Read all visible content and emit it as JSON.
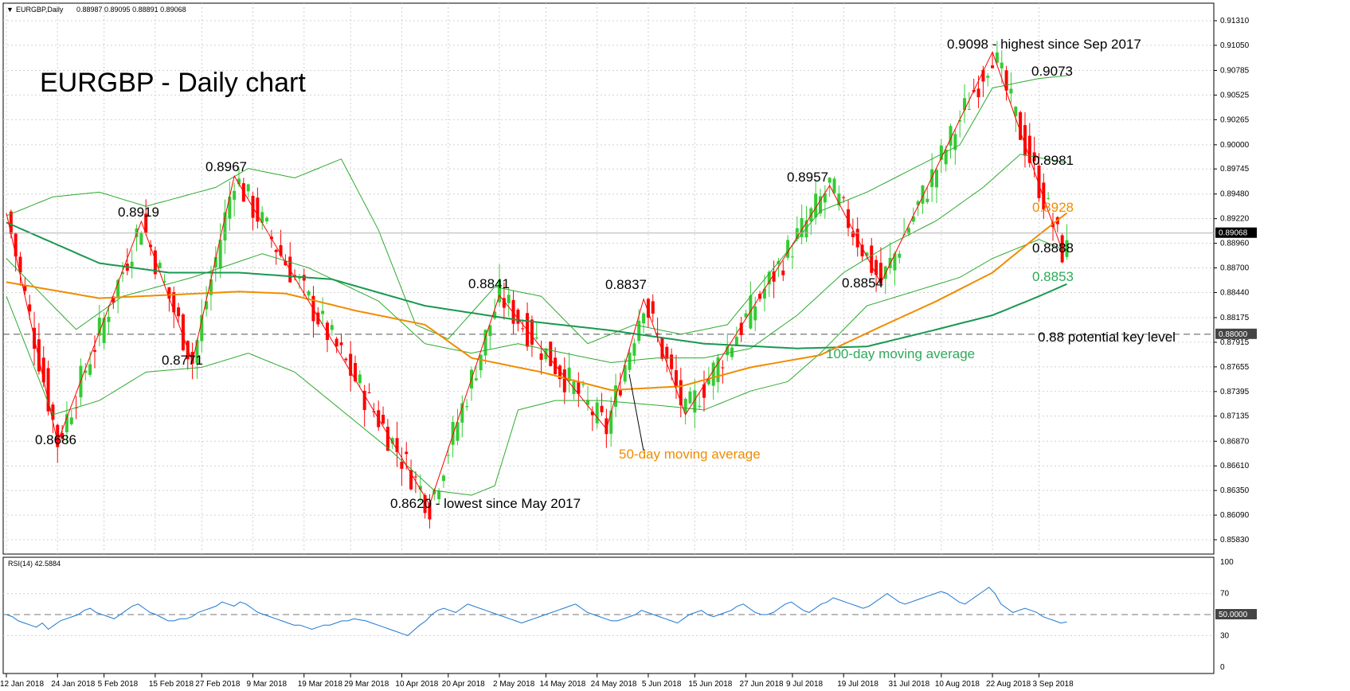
{
  "header": {
    "symbol_label": "EURGBP,Daily",
    "ohlc": "0.88987 0.89095 0.88891 0.89068"
  },
  "rsi_header": "RSI(14) 42.5884",
  "chart_data": [
    {
      "type": "candlestick",
      "title": "EURGBP - Daily chart",
      "ylim": [
        0.8583,
        0.9131
      ],
      "y_ticks": [
        "0.91310",
        "0.91050",
        "0.90785",
        "0.90525",
        "0.90265",
        "0.90000",
        "0.89745",
        "0.89480",
        "0.89220",
        "0.88960",
        "0.88700",
        "0.88440",
        "0.88175",
        "0.87915",
        "0.87655",
        "0.87395",
        "0.87135",
        "0.86870",
        "0.86610",
        "0.86350",
        "0.86090",
        "0.85830"
      ],
      "x_ticks": [
        "12 Jan 2018",
        "24 Jan 2018",
        "5 Feb 2018",
        "15 Feb 2018",
        "27 Feb 2018",
        "9 Mar 2018",
        "19 Mar 2018",
        "29 Mar 2018",
        "10 Apr 2018",
        "20 Apr 2018",
        "2 May 2018",
        "14 May 2018",
        "24 May 2018",
        "5 Jun 2018",
        "15 Jun 2018",
        "27 Jun 2018",
        "9 Jul 2018",
        "19 Jul 2018",
        "31 Jul 2018",
        "10 Aug 2018",
        "22 Aug 2018",
        "3 Sep 2018"
      ],
      "last_price": "0.89068",
      "key_level_price": "0.88000",
      "key_level": 0.88,
      "zigzag": [
        {
          "i": 0,
          "v": 0.8928
        },
        {
          "i": 11,
          "v": 0.8686
        },
        {
          "i": 29,
          "v": 0.8919
        },
        {
          "i": 40,
          "v": 0.8771
        },
        {
          "i": 49,
          "v": 0.8967
        },
        {
          "i": 91,
          "v": 0.862
        },
        {
          "i": 106,
          "v": 0.8841
        },
        {
          "i": 129,
          "v": 0.87
        },
        {
          "i": 137,
          "v": 0.8837
        },
        {
          "i": 146,
          "v": 0.8715
        },
        {
          "i": 177,
          "v": 0.8957
        },
        {
          "i": 188,
          "v": 0.8854
        },
        {
          "i": 212,
          "v": 0.9098
        },
        {
          "i": 227,
          "v": 0.8888
        }
      ],
      "ma50": [
        [
          0,
          0.8855
        ],
        [
          20,
          0.8838
        ],
        [
          50,
          0.8845
        ],
        [
          60,
          0.8843
        ],
        [
          75,
          0.8825
        ],
        [
          90,
          0.881
        ],
        [
          100,
          0.8775
        ],
        [
          115,
          0.876
        ],
        [
          130,
          0.8741
        ],
        [
          145,
          0.8745
        ],
        [
          160,
          0.8765
        ],
        [
          175,
          0.8778
        ],
        [
          188,
          0.8808
        ],
        [
          200,
          0.8835
        ],
        [
          212,
          0.8865
        ],
        [
          222,
          0.8905
        ],
        [
          228,
          0.8928
        ]
      ],
      "ma100": [
        [
          0,
          0.8918
        ],
        [
          20,
          0.8875
        ],
        [
          35,
          0.8865
        ],
        [
          50,
          0.8865
        ],
        [
          70,
          0.8858
        ],
        [
          90,
          0.883
        ],
        [
          110,
          0.8815
        ],
        [
          130,
          0.8804
        ],
        [
          150,
          0.879
        ],
        [
          170,
          0.8785
        ],
        [
          185,
          0.8787
        ],
        [
          200,
          0.8805
        ],
        [
          212,
          0.882
        ],
        [
          222,
          0.884
        ],
        [
          228,
          0.8853
        ]
      ],
      "boll_upper": [
        [
          0,
          0.8925
        ],
        [
          10,
          0.8945
        ],
        [
          20,
          0.895
        ],
        [
          30,
          0.8935
        ],
        [
          45,
          0.8955
        ],
        [
          52,
          0.8975
        ],
        [
          62,
          0.8965
        ],
        [
          72,
          0.8985
        ],
        [
          80,
          0.891
        ],
        [
          88,
          0.881
        ],
        [
          95,
          0.8795
        ],
        [
          105,
          0.885
        ],
        [
          115,
          0.884
        ],
        [
          125,
          0.879
        ],
        [
          135,
          0.881
        ],
        [
          145,
          0.88
        ],
        [
          155,
          0.881
        ],
        [
          165,
          0.887
        ],
        [
          175,
          0.893
        ],
        [
          185,
          0.895
        ],
        [
          195,
          0.8975
        ],
        [
          205,
          0.9
        ],
        [
          212,
          0.906
        ],
        [
          222,
          0.907
        ],
        [
          228,
          0.9073
        ]
      ],
      "boll_mid": [
        [
          0,
          0.888
        ],
        [
          15,
          0.8805
        ],
        [
          25,
          0.884
        ],
        [
          40,
          0.886
        ],
        [
          55,
          0.8885
        ],
        [
          65,
          0.887
        ],
        [
          80,
          0.8835
        ],
        [
          90,
          0.879
        ],
        [
          100,
          0.878
        ],
        [
          110,
          0.879
        ],
        [
          120,
          0.878
        ],
        [
          130,
          0.877
        ],
        [
          140,
          0.8775
        ],
        [
          150,
          0.8775
        ],
        [
          160,
          0.8785
        ],
        [
          170,
          0.882
        ],
        [
          180,
          0.8865
        ],
        [
          190,
          0.8895
        ],
        [
          200,
          0.892
        ],
        [
          210,
          0.8955
        ],
        [
          218,
          0.899
        ],
        [
          228,
          0.8981
        ]
      ],
      "boll_lower": [
        [
          0,
          0.884
        ],
        [
          10,
          0.8715
        ],
        [
          20,
          0.873
        ],
        [
          30,
          0.876
        ],
        [
          42,
          0.8765
        ],
        [
          52,
          0.878
        ],
        [
          62,
          0.876
        ],
        [
          72,
          0.872
        ],
        [
          82,
          0.868
        ],
        [
          92,
          0.8635
        ],
        [
          100,
          0.863
        ],
        [
          105,
          0.864
        ],
        [
          110,
          0.872
        ],
        [
          118,
          0.873
        ],
        [
          128,
          0.873
        ],
        [
          140,
          0.8725
        ],
        [
          150,
          0.872
        ],
        [
          160,
          0.874
        ],
        [
          168,
          0.875
        ],
        [
          175,
          0.878
        ],
        [
          185,
          0.883
        ],
        [
          195,
          0.8845
        ],
        [
          205,
          0.886
        ],
        [
          212,
          0.888
        ],
        [
          222,
          0.89
        ],
        [
          228,
          0.8888
        ]
      ],
      "annotations": [
        {
          "text": "0.8919"
        },
        {
          "text": "0.8967"
        },
        {
          "text": "0.8686"
        },
        {
          "text": "0.8771"
        },
        {
          "text": "0.8841"
        },
        {
          "text": "0.8837"
        },
        {
          "text": "0.8620 - lowest since May 2017"
        },
        {
          "text": "0.8957"
        },
        {
          "text": "0.8854"
        },
        {
          "text": "0.9098 - highest since Sep 2017"
        },
        {
          "text": "0.9073"
        },
        {
          "text": "0.8981"
        },
        {
          "text": "0.8928",
          "color": "#f08c00"
        },
        {
          "text": "0.8888"
        },
        {
          "text": "0.8853",
          "color": "#2eaa5a"
        },
        {
          "text": "0.88 potential key level"
        },
        {
          "text": "100-day moving average",
          "color": "#2eaa5a"
        },
        {
          "text": "50-day moving average",
          "color": "#f08c00"
        }
      ],
      "colors": {
        "up": "#33cc33",
        "down": "#ff0000",
        "ma50": "#f08c00",
        "ma100": "#1a9850",
        "bollinger": "#2eaa2e",
        "zigzag": "#ff0000"
      }
    },
    {
      "type": "line",
      "name": "RSI(14) 42.5884",
      "ylim": [
        0,
        100
      ],
      "y_ticks": [
        "100",
        "70",
        "50.0000",
        "30",
        "0"
      ],
      "level": 50,
      "values": [
        50,
        48,
        44,
        42,
        40,
        38,
        42,
        36,
        40,
        44,
        46,
        48,
        50,
        54,
        56,
        52,
        50,
        48,
        46,
        50,
        54,
        58,
        60,
        56,
        52,
        50,
        47,
        44,
        44,
        46,
        46,
        48,
        52,
        54,
        56,
        58,
        62,
        60,
        58,
        62,
        60,
        56,
        52,
        50,
        48,
        46,
        44,
        42,
        40,
        40,
        38,
        36,
        38,
        40,
        40,
        42,
        44,
        44,
        46,
        45,
        44,
        42,
        40,
        38,
        36,
        34,
        32,
        30,
        35,
        40,
        44,
        50,
        54,
        56,
        54,
        52,
        56,
        60,
        58,
        56,
        54,
        52,
        50,
        48,
        46,
        44,
        42,
        44,
        46,
        48,
        50,
        52,
        54,
        56,
        58,
        60,
        56,
        52,
        50,
        48,
        46,
        44,
        44,
        46,
        48,
        50,
        54,
        52,
        50,
        48,
        46,
        44,
        42,
        46,
        50,
        52,
        54,
        50,
        48,
        50,
        52,
        54,
        58,
        60,
        56,
        52,
        50,
        50,
        52,
        56,
        60,
        62,
        58,
        54,
        52,
        56,
        60,
        62,
        66,
        64,
        62,
        60,
        58,
        56,
        58,
        62,
        66,
        70,
        66,
        62,
        60,
        62,
        64,
        66,
        68,
        70,
        72,
        70,
        66,
        62,
        60,
        64,
        68,
        72,
        76,
        70,
        60,
        56,
        52,
        54,
        56,
        54,
        52,
        48,
        46,
        44,
        42,
        43
      ],
      "color": "#1e78d2"
    }
  ]
}
